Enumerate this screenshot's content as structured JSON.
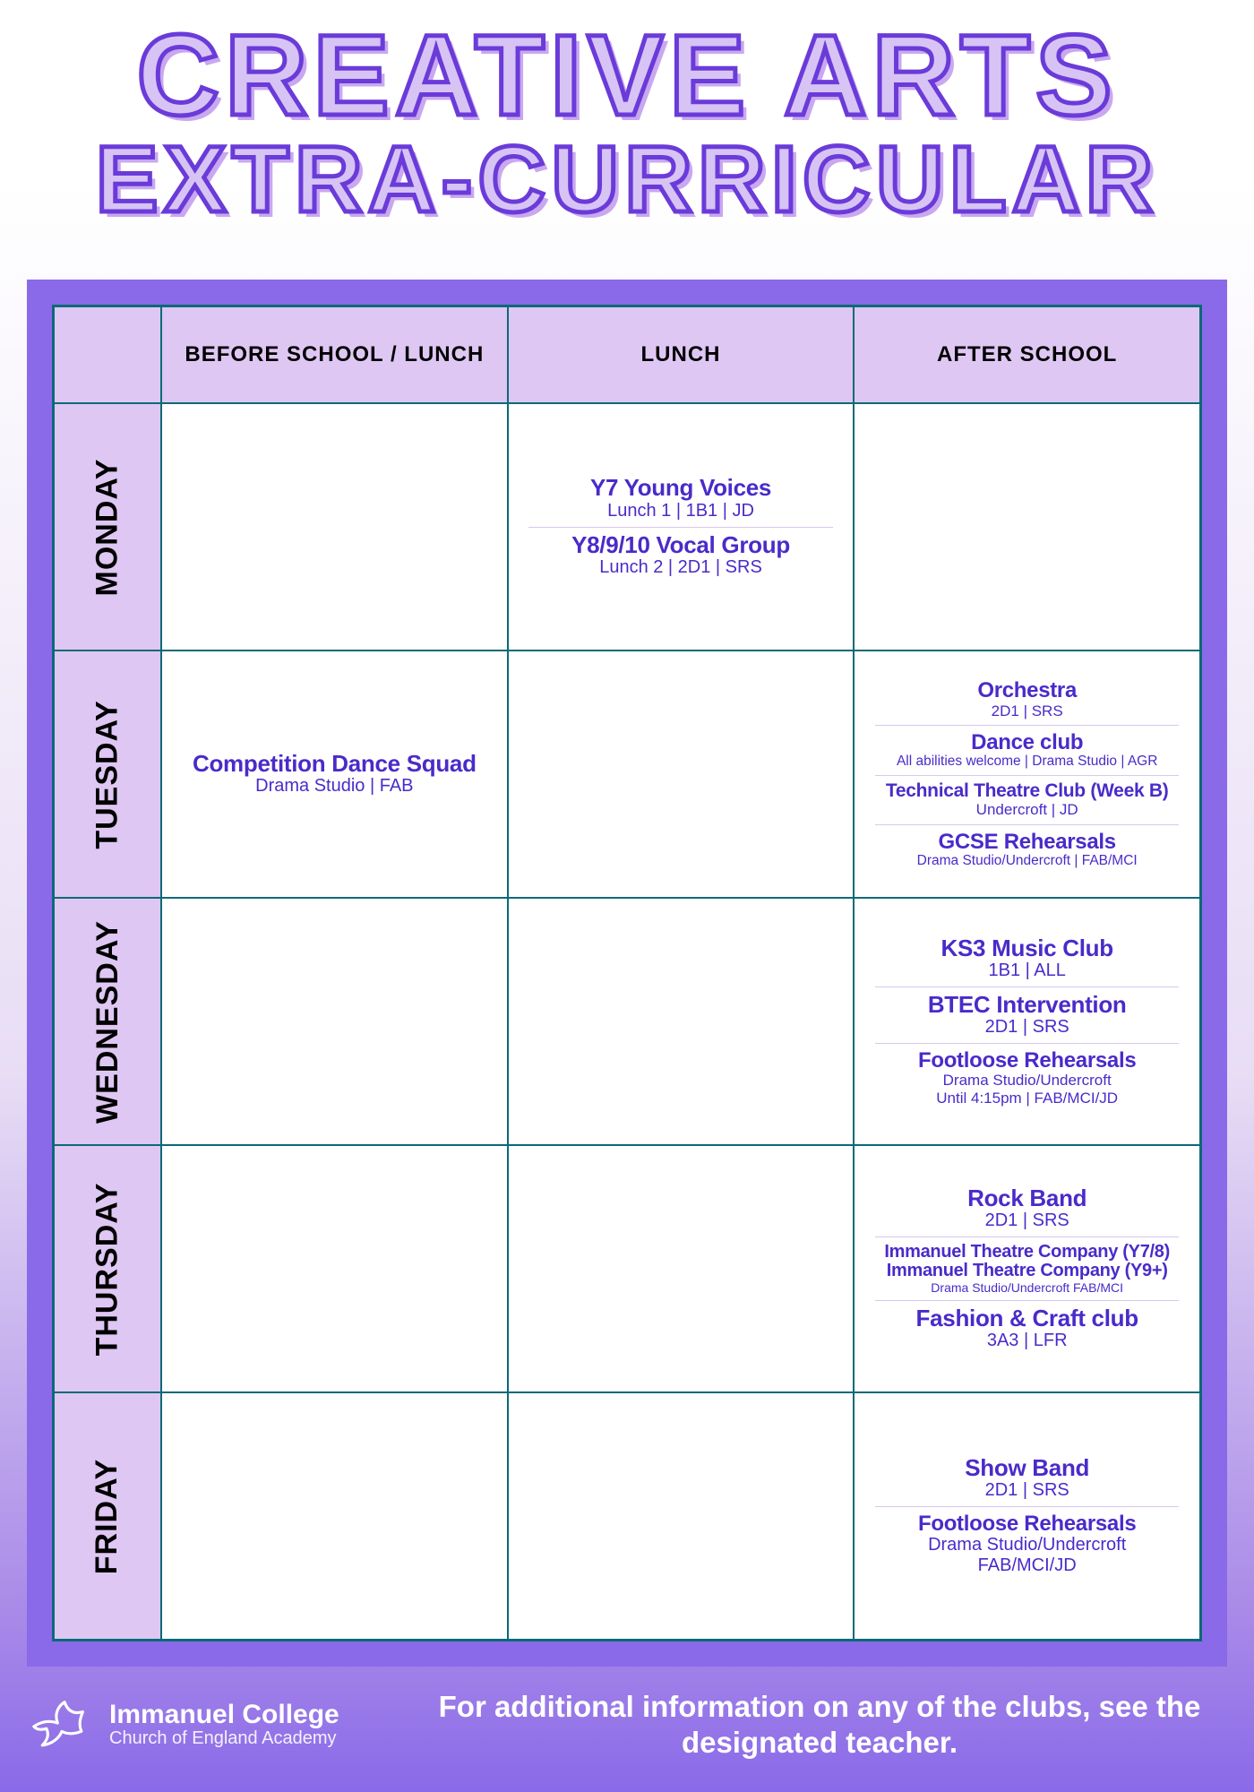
{
  "title": {
    "line1": "CREATIVE ARTS",
    "line2": "EXTRA-CURRICULAR"
  },
  "columns": [
    "BEFORE SCHOOL / LUNCH",
    "LUNCH",
    "AFTER SCHOOL"
  ],
  "days": [
    {
      "name": "MONDAY",
      "before": [],
      "lunch": [
        {
          "title": "Y7 Young Voices",
          "detail": "Lunch 1 | 1B1 | JD",
          "tcls": "",
          "dcls": ""
        },
        {
          "title": "Y8/9/10 Vocal Group",
          "detail": "Lunch 2 | 2D1 | SRS",
          "tcls": "",
          "dcls": ""
        }
      ],
      "after": []
    },
    {
      "name": "TUESDAY",
      "before": [
        {
          "title": "Competition Dance Squad",
          "detail": "Drama Studio | FAB",
          "tcls": "",
          "dcls": ""
        }
      ],
      "lunch": [],
      "after": [
        {
          "title": "Orchestra",
          "detail": "2D1 | SRS",
          "tcls": "sm",
          "dcls": "sm"
        },
        {
          "title": "Dance club",
          "detail": "All abilities welcome | Drama Studio | AGR",
          "tcls": "sm",
          "dcls": "xs"
        },
        {
          "title": "Technical Theatre Club (Week B)",
          "detail": "Undercroft | JD",
          "tcls": "xs",
          "dcls": "sm"
        },
        {
          "title": "GCSE Rehearsals",
          "detail": "Drama Studio/Undercroft | FAB/MCI",
          "tcls": "sm",
          "dcls": "xs"
        }
      ]
    },
    {
      "name": "WEDNESDAY",
      "before": [],
      "lunch": [],
      "after": [
        {
          "title": "KS3 Music Club",
          "detail": "1B1 | ALL",
          "tcls": "",
          "dcls": ""
        },
        {
          "title": "BTEC Intervention",
          "detail": "2D1 | SRS",
          "tcls": "",
          "dcls": ""
        },
        {
          "title": "Footloose Rehearsals",
          "detail": "Drama Studio/Undercroft\nUntil 4:15pm | FAB/MCI/JD",
          "tcls": "sm",
          "dcls": "sm"
        }
      ]
    },
    {
      "name": "THURSDAY",
      "before": [],
      "lunch": [],
      "after": [
        {
          "title": "Rock Band",
          "detail": "2D1 | SRS",
          "tcls": "",
          "dcls": ""
        },
        {
          "title": "Immanuel Theatre Company (Y7/8)\nImmanuel Theatre Company (Y9+)",
          "detail": "Drama Studio/Undercroft FAB/MCI",
          "tcls": "xxs",
          "dcls": "xxs"
        },
        {
          "title": "Fashion & Craft club",
          "detail": "3A3 | LFR",
          "tcls": "",
          "dcls": ""
        }
      ]
    },
    {
      "name": "FRIDAY",
      "before": [],
      "lunch": [],
      "after": [
        {
          "title": "Show Band",
          "detail": "2D1 | SRS",
          "tcls": "",
          "dcls": ""
        },
        {
          "title": "Footloose Rehearsals",
          "detail": "Drama Studio/Undercroft\nFAB/MCI/JD",
          "tcls": "sm",
          "dcls": ""
        }
      ]
    }
  ],
  "footer": {
    "org_name": "Immanuel College",
    "org_sub": "Church of England Academy",
    "message": "For additional information on any of the clubs, see the designated teacher."
  },
  "style": {
    "accent": "#6a3bd9",
    "text_purple": "#4a2bc9",
    "header_fill": "#dfc7f3",
    "frame_fill": "#8a6ae8",
    "cell_border": "#0b6a77",
    "bg_top": "#ffffff",
    "bg_bottom": "#8a6ae8"
  }
}
